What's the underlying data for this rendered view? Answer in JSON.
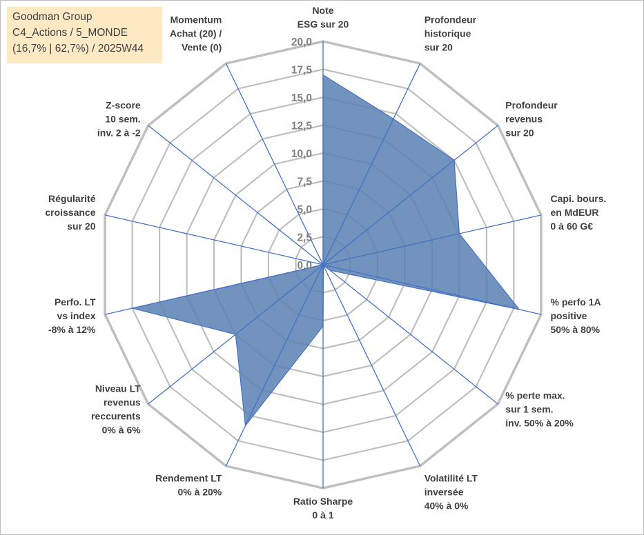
{
  "title_box": {
    "line1": "Goodman Group",
    "line2": "C4_Actions / 5_MONDE",
    "line3": "(16,7% | 62,7%) / 2025W44"
  },
  "chart_data": {
    "type": "radar",
    "rmin": 0,
    "rmax": 20,
    "ticks": [
      "0,0",
      "2,5",
      "5,0",
      "7,5",
      "10,0",
      "12,5",
      "15,0",
      "17,5",
      "20,0"
    ],
    "tick_values": [
      0,
      2.5,
      5,
      7.5,
      10,
      12.5,
      15,
      17.5,
      20
    ],
    "axes": [
      {
        "label": [
          "Note",
          "ESG sur 20"
        ]
      },
      {
        "label": [
          "Profondeur",
          "historique",
          "sur 20"
        ]
      },
      {
        "label": [
          "Profondeur",
          "revenus",
          "sur 20"
        ]
      },
      {
        "label": [
          "Capi. bours.",
          "en MdEUR",
          "0 à 60 G€"
        ]
      },
      {
        "label": [
          "% perfo 1A",
          "positive",
          "50% à 80%"
        ]
      },
      {
        "label": [
          "% perte max.",
          "sur 1 sem.",
          "inv. 50% à 20%"
        ]
      },
      {
        "label": [
          "Volatilité LT",
          "inversée",
          "40% à 0%"
        ]
      },
      {
        "label": [
          "Ratio Sharpe",
          "0 à 1"
        ]
      },
      {
        "label": [
          "Rendement LT",
          "0% à 20%"
        ]
      },
      {
        "label": [
          "Niveau LT",
          "revenus",
          "reccurents",
          "0% à 6%"
        ]
      },
      {
        "label": [
          "Perfo. LT",
          "vs index",
          "-8% à 12%"
        ]
      },
      {
        "label": [
          "Régularité",
          "croissance",
          "sur 20"
        ]
      },
      {
        "label": [
          "Z-score",
          "10 sem.",
          "inv. 2 à -2"
        ]
      },
      {
        "label": [
          "Momentum",
          "Achat (20) /",
          "Vente (0)"
        ]
      }
    ],
    "series": [
      {
        "values": [
          17,
          14.5,
          15,
          12.5,
          18,
          0.8,
          0.1,
          5.5,
          16,
          10,
          17.5,
          0,
          0,
          0
        ]
      }
    ],
    "colors": {
      "fill": "#5b80b4",
      "outline": "#4472c4",
      "spoke": "#4472c4",
      "grid": "#bfbfbf",
      "tick": "#808080",
      "label": "#404040"
    }
  }
}
